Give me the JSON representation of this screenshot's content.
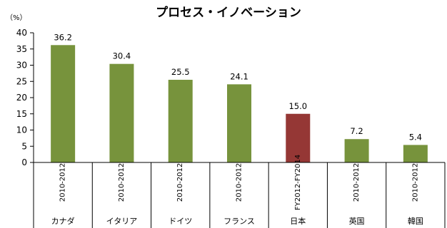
{
  "chart_data": {
    "type": "bar",
    "title": "プロセス・イノベーション",
    "y_unit": "（%）",
    "ylim": [
      0,
      40
    ],
    "yticks": [
      0,
      5,
      10,
      15,
      20,
      25,
      30,
      35,
      40
    ],
    "grid": false,
    "legend": "none",
    "categories": [
      "カナダ",
      "イタリア",
      "ドイツ",
      "フランス",
      "日本",
      "英国",
      "韓国"
    ],
    "periods": [
      "2010-2012",
      "2010-2012",
      "2010-2012",
      "2010-2012",
      "FY2012-FY2014",
      "2010-2012",
      "2010-2012"
    ],
    "values": [
      36.2,
      30.4,
      25.5,
      24.1,
      15.0,
      7.2,
      5.4
    ],
    "value_labels": [
      "36.2",
      "30.4",
      "25.5",
      "24.1",
      "15.0",
      "7.2",
      "5.4"
    ],
    "colors": {
      "default": "#77933c",
      "highlight": "#953735",
      "highlight_category": "日本"
    }
  }
}
